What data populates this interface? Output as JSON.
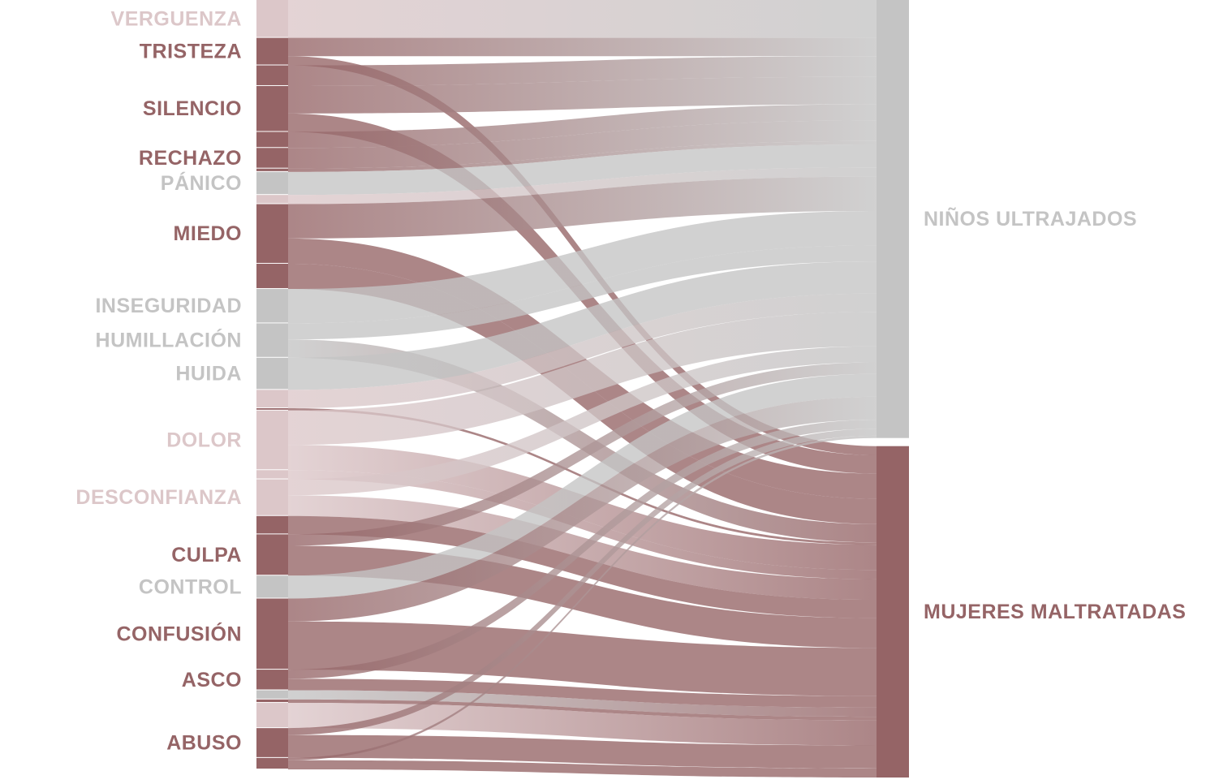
{
  "colors": {
    "rose_dark": "#956466",
    "rose_light": "#dcc7c9",
    "gray": "#c4c4c4",
    "target_children": "#c4c4c4",
    "target_women": "#956466"
  },
  "chart_data": {
    "type": "sankey",
    "title": "",
    "sources": [
      {
        "label": "VERGUENZA",
        "color_key": "rose_light"
      },
      {
        "label": "TRISTEZA",
        "color_key": "rose_dark"
      },
      {
        "label": "",
        "color_key": "rose_dark"
      },
      {
        "label": "SILENCIO",
        "color_key": "rose_dark"
      },
      {
        "label": "",
        "color_key": "rose_dark"
      },
      {
        "label": "RECHAZO",
        "color_key": "rose_dark"
      },
      {
        "label": "",
        "color_key": "rose_dark"
      },
      {
        "label": "PÁNICO",
        "color_key": "gray"
      },
      {
        "label": "",
        "color_key": "rose_light"
      },
      {
        "label": "MIEDO",
        "color_key": "rose_dark"
      },
      {
        "label": "",
        "color_key": "rose_dark"
      },
      {
        "label": "INSEGURIDAD",
        "color_key": "gray"
      },
      {
        "label": "HUMILLACIÓN",
        "color_key": "gray"
      },
      {
        "label": "HUIDA",
        "color_key": "gray"
      },
      {
        "label": "",
        "color_key": "rose_light"
      },
      {
        "label": "",
        "color_key": "rose_dark"
      },
      {
        "label": "DOLOR",
        "color_key": "rose_light"
      },
      {
        "label": "",
        "color_key": "rose_light"
      },
      {
        "label": "DESCONFIANZA",
        "color_key": "rose_light"
      },
      {
        "label": "",
        "color_key": "rose_dark"
      },
      {
        "label": "CULPA",
        "color_key": "rose_dark"
      },
      {
        "label": "CONTROL",
        "color_key": "gray"
      },
      {
        "label": "CONFUSIÓN",
        "color_key": "rose_dark"
      },
      {
        "label": "ASCO",
        "color_key": "rose_dark"
      },
      {
        "label": "",
        "color_key": "gray"
      },
      {
        "label": "",
        "color_key": "rose_dark"
      },
      {
        "label": "",
        "color_key": "rose_light"
      },
      {
        "label": "ABUSO",
        "color_key": "rose_dark"
      },
      {
        "label": "",
        "color_key": "rose_dark"
      }
    ],
    "targets": [
      {
        "label": "NIÑOS ULTRAJADOS",
        "color_key": "target_children"
      },
      {
        "label": "MUJERES MALTRATADAS",
        "color_key": "target_women"
      }
    ],
    "flows": [
      {
        "source": 0,
        "target": 0,
        "value": 33
      },
      {
        "source": 1,
        "target": 0,
        "value": 16
      },
      {
        "source": 1,
        "target": 1,
        "value": 8
      },
      {
        "source": 2,
        "target": 0,
        "value": 18
      },
      {
        "source": 3,
        "target": 0,
        "value": 24
      },
      {
        "source": 3,
        "target": 1,
        "value": 16
      },
      {
        "source": 4,
        "target": 0,
        "value": 14
      },
      {
        "source": 5,
        "target": 0,
        "value": 18
      },
      {
        "source": 6,
        "target": 0,
        "value": 3
      },
      {
        "source": 7,
        "target": 0,
        "value": 20
      },
      {
        "source": 8,
        "target": 0,
        "value": 8
      },
      {
        "source": 9,
        "target": 0,
        "value": 30
      },
      {
        "source": 9,
        "target": 1,
        "value": 22
      },
      {
        "source": 10,
        "target": 1,
        "value": 22
      },
      {
        "source": 11,
        "target": 0,
        "value": 30
      },
      {
        "source": 12,
        "target": 0,
        "value": 14
      },
      {
        "source": 12,
        "target": 1,
        "value": 16
      },
      {
        "source": 13,
        "target": 0,
        "value": 28
      },
      {
        "source": 14,
        "target": 0,
        "value": 16
      },
      {
        "source": 15,
        "target": 1,
        "value": 2
      },
      {
        "source": 16,
        "target": 0,
        "value": 30
      },
      {
        "source": 16,
        "target": 1,
        "value": 22
      },
      {
        "source": 17,
        "target": 1,
        "value": 8
      },
      {
        "source": 18,
        "target": 0,
        "value": 14
      },
      {
        "source": 18,
        "target": 1,
        "value": 18
      },
      {
        "source": 19,
        "target": 1,
        "value": 16
      },
      {
        "source": 20,
        "target": 0,
        "value": 10
      },
      {
        "source": 20,
        "target": 1,
        "value": 26
      },
      {
        "source": 21,
        "target": 0,
        "value": 20
      },
      {
        "source": 22,
        "target": 0,
        "value": 20
      },
      {
        "source": 22,
        "target": 1,
        "value": 42
      },
      {
        "source": 23,
        "target": 0,
        "value": 8
      },
      {
        "source": 23,
        "target": 1,
        "value": 10
      },
      {
        "source": 24,
        "target": 1,
        "value": 8
      },
      {
        "source": 25,
        "target": 1,
        "value": 3
      },
      {
        "source": 26,
        "target": 1,
        "value": 22
      },
      {
        "source": 27,
        "target": 0,
        "value": 6
      },
      {
        "source": 27,
        "target": 1,
        "value": 20
      },
      {
        "source": 28,
        "target": 0,
        "value": 2
      },
      {
        "source": 28,
        "target": 1,
        "value": 8
      }
    ]
  }
}
